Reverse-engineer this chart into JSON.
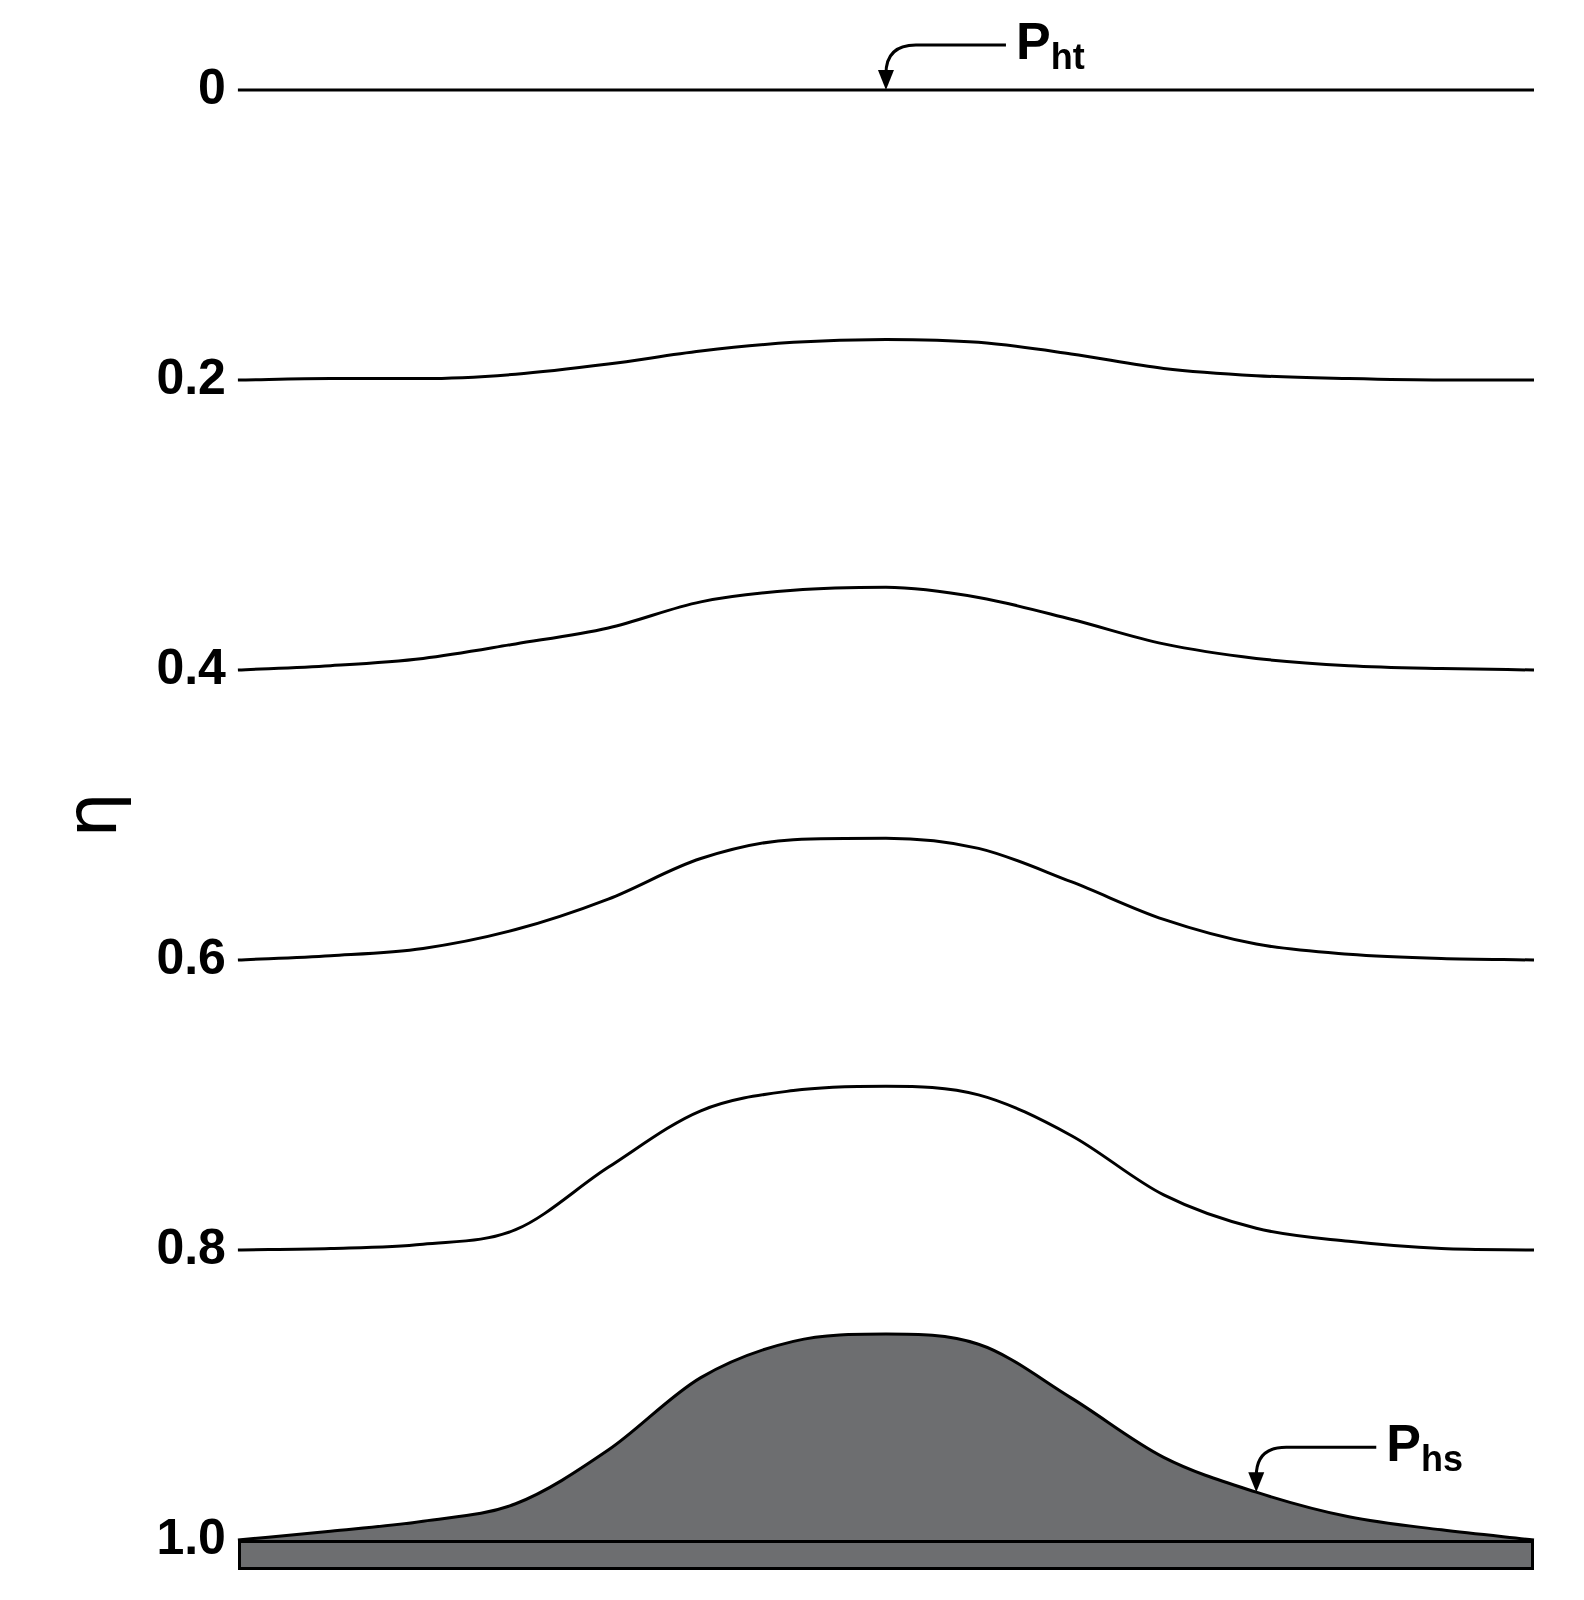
{
  "chart_data": {
    "type": "line",
    "ylabel": "η",
    "categories": [
      null,
      null,
      null,
      null,
      null,
      null,
      null,
      null,
      null,
      null,
      null,
      null,
      null,
      null,
      null
    ],
    "series": [
      {
        "color": "#000000",
        "values": [
          0,
          0,
          0,
          0,
          0,
          0,
          0,
          0,
          0,
          0,
          0,
          0,
          0,
          0,
          0
        ]
      },
      {
        "color": "#000000",
        "values": [
          0.2,
          0.199,
          0.199,
          0.196,
          0.189,
          0.18,
          0.174,
          0.172,
          0.174,
          0.182,
          0.192,
          0.197,
          0.199,
          0.2,
          0.2
        ]
      },
      {
        "color": "#000000",
        "values": [
          0.4,
          0.397,
          0.392,
          0.382,
          0.371,
          0.353,
          0.345,
          0.343,
          0.35,
          0.365,
          0.382,
          0.392,
          0.397,
          0.399,
          0.4
        ]
      },
      {
        "color": "#000000",
        "values": [
          0.6,
          0.597,
          0.592,
          0.579,
          0.558,
          0.53,
          0.517,
          0.516,
          0.523,
          0.546,
          0.572,
          0.589,
          0.596,
          0.599,
          0.6
        ]
      },
      {
        "color": "#000000",
        "values": [
          0.8,
          0.799,
          0.796,
          0.786,
          0.743,
          0.704,
          0.69,
          0.687,
          0.693,
          0.721,
          0.762,
          0.785,
          0.794,
          0.799,
          0.8
        ]
      },
      {
        "type": "area",
        "color": "#6d6e70",
        "values": [
          1,
          0.994,
          0.987,
          0.975,
          0.938,
          0.888,
          0.863,
          0.858,
          0.865,
          0.902,
          0.943,
          0.967,
          0.984,
          0.993,
          1
        ]
      }
    ],
    "ylim": [
      1,
      0
    ],
    "yticks": [
      0,
      0.2,
      0.4,
      0.6,
      0.8,
      {
        "value": 1,
        "label": "1.0"
      }
    ],
    "grid": false,
    "legend": false,
    "tick_labels": "y",
    "marker": "none",
    "line_style": "solid",
    "annotations": [
      {
        "text": "P$_{ht}$",
        "y": 0
      },
      "P$_{hs}$"
    ]
  }
}
